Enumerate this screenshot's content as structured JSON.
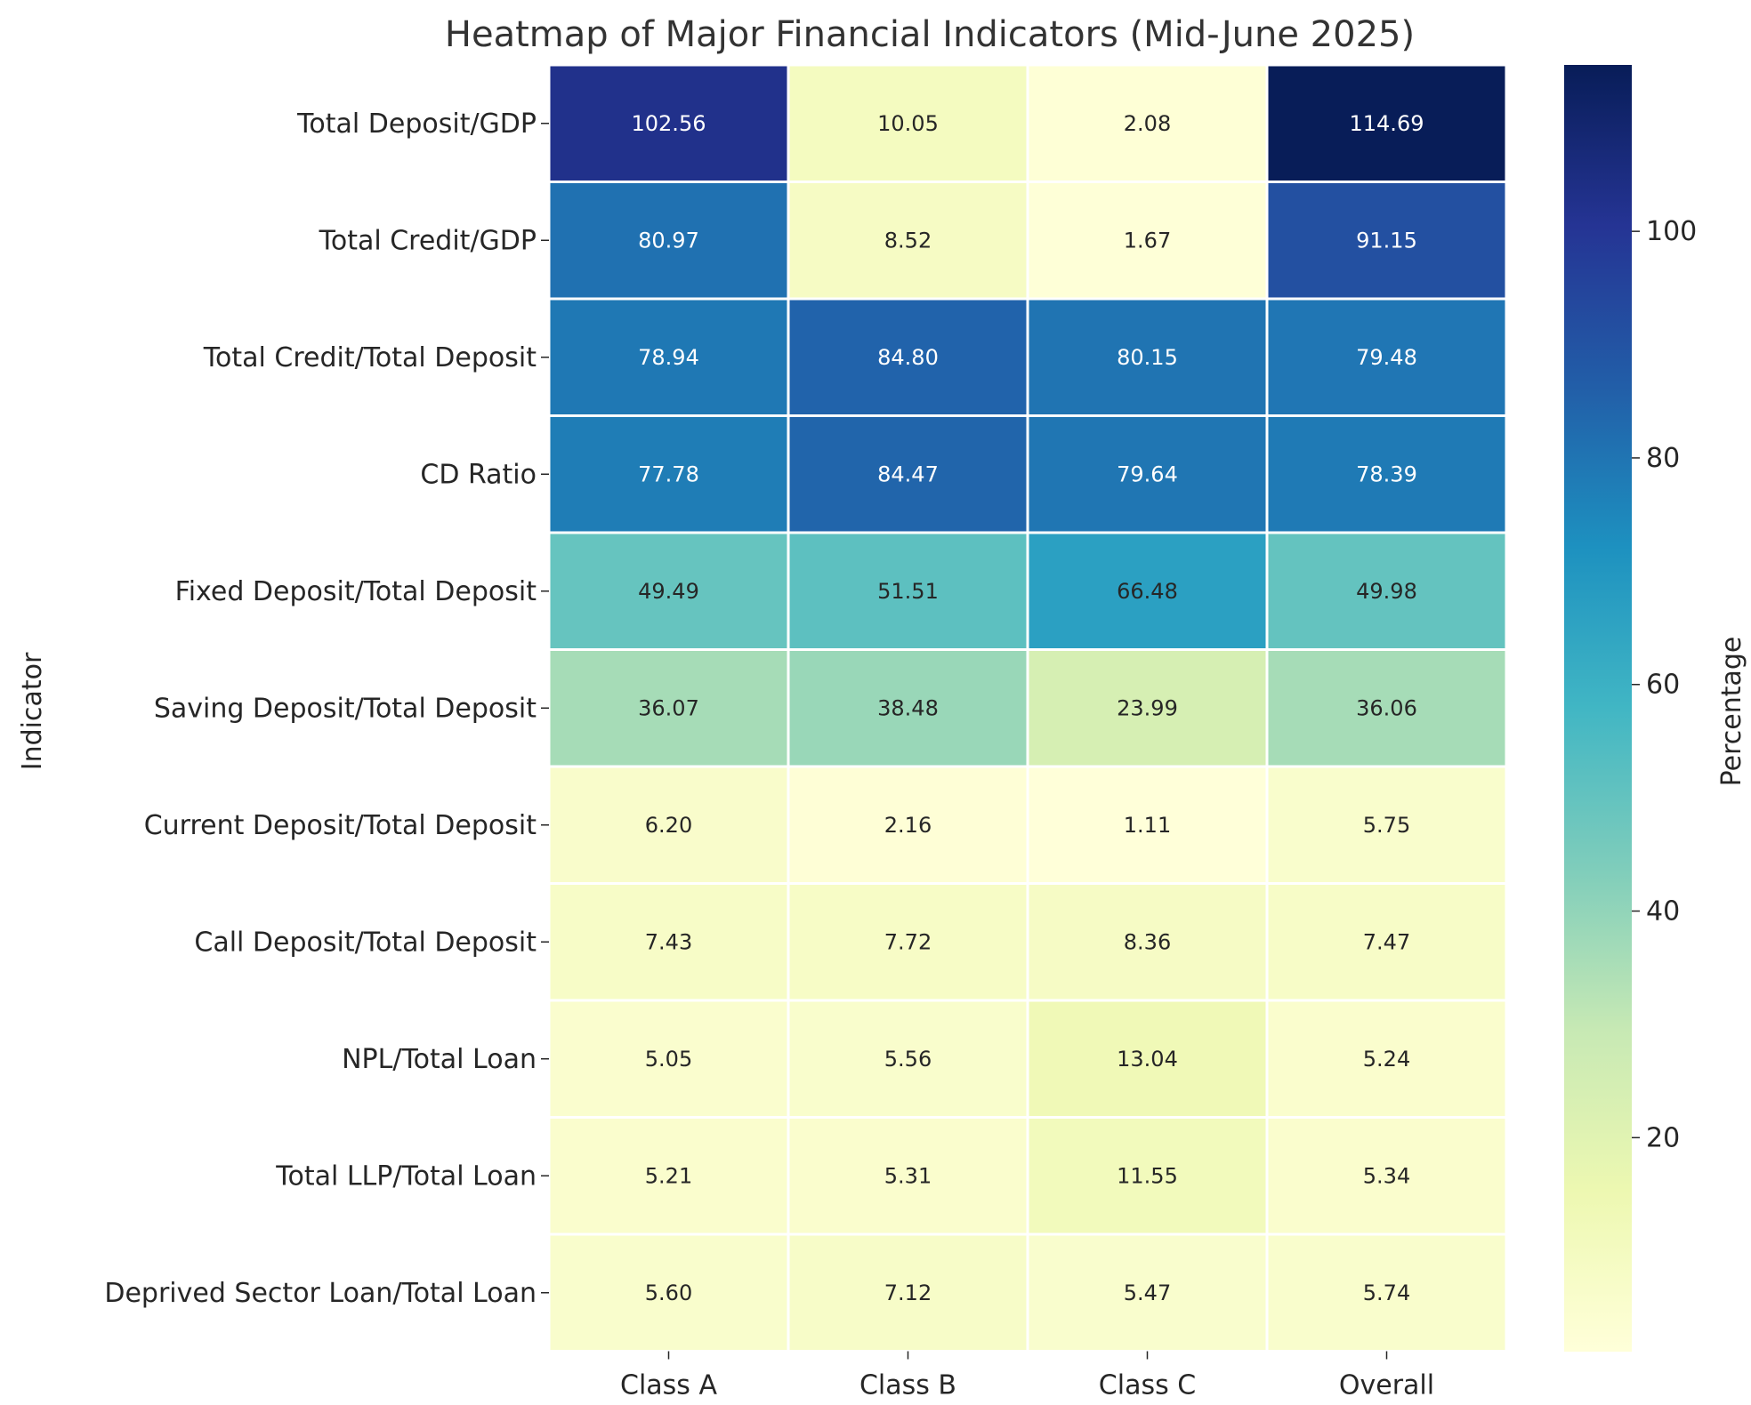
{
  "chart_data": {
    "type": "heatmap",
    "title": "Heatmap of Major Financial Indicators (Mid-June 2025)",
    "xlabel": "",
    "ylabel": "Indicator",
    "columns": [
      "Class A",
      "Class B",
      "Class C",
      "Overall"
    ],
    "rows": [
      "Total Deposit/GDP",
      "Total Credit/GDP",
      "Total Credit/Total Deposit",
      "CD Ratio",
      "Fixed Deposit/Total Deposit",
      "Saving Deposit/Total Deposit",
      "Current Deposit/Total Deposit",
      "Call Deposit/Total Deposit",
      "NPL/Total Loan",
      "Total LLP/Total Loan",
      "Deprived Sector Loan/Total Loan"
    ],
    "values": [
      [
        102.56,
        10.05,
        2.08,
        114.69
      ],
      [
        80.97,
        8.52,
        1.67,
        91.15
      ],
      [
        78.94,
        84.8,
        80.15,
        79.48
      ],
      [
        77.78,
        84.47,
        79.64,
        78.39
      ],
      [
        49.49,
        51.51,
        66.48,
        49.98
      ],
      [
        36.07,
        38.48,
        23.99,
        36.06
      ],
      [
        6.2,
        2.16,
        1.11,
        5.75
      ],
      [
        7.43,
        7.72,
        8.36,
        7.47
      ],
      [
        5.05,
        5.56,
        13.04,
        5.24
      ],
      [
        5.21,
        5.31,
        11.55,
        5.34
      ],
      [
        5.6,
        7.12,
        5.47,
        5.74
      ]
    ],
    "value_labels": [
      [
        "102.56",
        "10.05",
        "2.08",
        "114.69"
      ],
      [
        "80.97",
        "8.52",
        "1.67",
        "91.15"
      ],
      [
        "78.94",
        "84.80",
        "80.15",
        "79.48"
      ],
      [
        "77.78",
        "84.47",
        "79.64",
        "78.39"
      ],
      [
        "49.49",
        "51.51",
        "66.48",
        "49.98"
      ],
      [
        "36.07",
        "38.48",
        "23.99",
        "36.06"
      ],
      [
        "6.20",
        "2.16",
        "1.11",
        "5.75"
      ],
      [
        "7.43",
        "7.72",
        "8.36",
        "7.47"
      ],
      [
        "5.05",
        "5.56",
        "13.04",
        "5.24"
      ],
      [
        "5.21",
        "5.31",
        "11.55",
        "5.34"
      ],
      [
        "5.60",
        "7.12",
        "5.47",
        "5.74"
      ]
    ],
    "colorbar": {
      "label": "Percentage",
      "colormap": "YlGnBu",
      "range": [
        1.11,
        114.69
      ],
      "ticks": [
        20,
        40,
        60,
        80,
        100
      ],
      "tick_labels": [
        "20",
        "40",
        "60",
        "80",
        "100"
      ]
    },
    "colormap_stops": [
      "#ffffd9",
      "#edf8b1",
      "#c7e9b4",
      "#7fcdbb",
      "#41b6c4",
      "#1d91c0",
      "#225ea8",
      "#253494",
      "#081d58"
    ]
  }
}
